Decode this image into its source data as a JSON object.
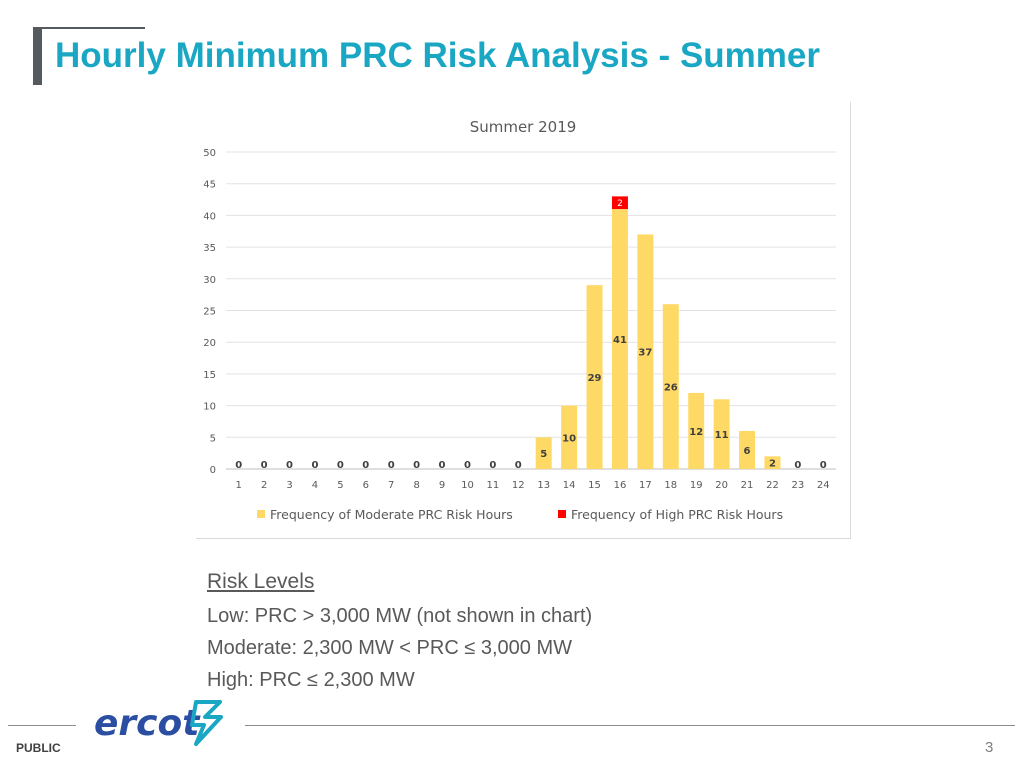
{
  "slide": {
    "title": "Hourly Minimum PRC Risk Analysis - Summer",
    "footer_label": "PUBLIC",
    "page_number": "3",
    "logo_text": "ercot"
  },
  "risk_levels": {
    "heading": "Risk Levels",
    "lines": [
      "Low: PRC > 3,000 MW (not shown in chart)",
      "Moderate: 2,300 MW < PRC ≤ 3,000 MW",
      "High: PRC ≤ 2,300 MW"
    ]
  },
  "colors": {
    "title": "#1aa7c4",
    "moderate": "#ffd966",
    "high": "#ff0000",
    "logo": "#2b4ea2"
  },
  "chart_data": {
    "type": "bar",
    "stacked": true,
    "title": "Summer 2019",
    "xlabel": "",
    "ylabel": "",
    "categories": [
      "1",
      "2",
      "3",
      "4",
      "5",
      "6",
      "7",
      "8",
      "9",
      "10",
      "11",
      "12",
      "13",
      "14",
      "15",
      "16",
      "17",
      "18",
      "19",
      "20",
      "21",
      "22",
      "23",
      "24"
    ],
    "series": [
      {
        "name": "Frequency of Moderate PRC Risk Hours",
        "color": "#ffd966",
        "values": [
          0,
          0,
          0,
          0,
          0,
          0,
          0,
          0,
          0,
          0,
          0,
          0,
          5,
          10,
          29,
          41,
          37,
          26,
          12,
          11,
          6,
          2,
          0,
          0
        ]
      },
      {
        "name": "Frequency of High PRC Risk Hours",
        "color": "#ff0000",
        "values": [
          0,
          0,
          0,
          0,
          0,
          0,
          0,
          0,
          0,
          0,
          0,
          0,
          0,
          0,
          0,
          2,
          0,
          0,
          0,
          0,
          0,
          0,
          0,
          0
        ]
      }
    ],
    "ylim": [
      0,
      50
    ],
    "yticks": [
      0,
      5,
      10,
      15,
      20,
      25,
      30,
      35,
      40,
      45,
      50
    ],
    "grid": true,
    "legend_position": "bottom"
  }
}
